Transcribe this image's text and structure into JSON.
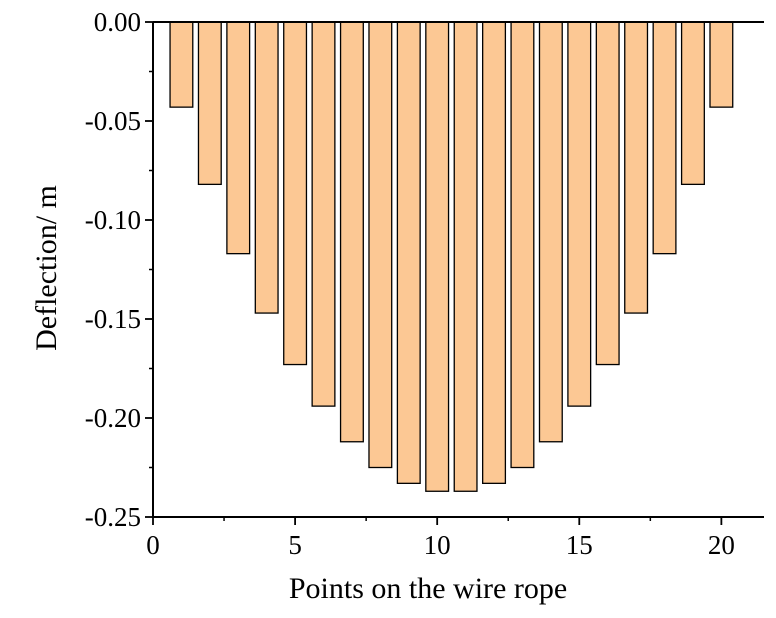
{
  "chart_data": {
    "type": "bar",
    "title": "",
    "xlabel": "Points on the wire rope",
    "ylabel": "Deflection/ m",
    "x": [
      1,
      2,
      3,
      4,
      5,
      6,
      7,
      8,
      9,
      10,
      11,
      12,
      13,
      14,
      15,
      16,
      17,
      18,
      19,
      20
    ],
    "values": [
      -0.043,
      -0.082,
      -0.117,
      -0.147,
      -0.173,
      -0.194,
      -0.212,
      -0.225,
      -0.233,
      -0.237,
      -0.237,
      -0.233,
      -0.225,
      -0.212,
      -0.194,
      -0.173,
      -0.147,
      -0.117,
      -0.082,
      -0.043
    ],
    "xlim": [
      0,
      21.5
    ],
    "ylim": [
      -0.25,
      0
    ],
    "x_ticks": [
      0,
      5,
      10,
      15,
      20
    ],
    "x_tick_labels": [
      "0",
      "5",
      "10",
      "15",
      "20"
    ],
    "y_ticks": [
      0,
      -0.05,
      -0.1,
      -0.15,
      -0.2,
      -0.25
    ],
    "y_tick_labels": [
      "0.00",
      "-0.05",
      "-0.10",
      "-0.15",
      "-0.20",
      "-0.25"
    ],
    "bar_fill": "#fcc894",
    "bar_edge": "#000000",
    "grid": false,
    "legend": "none"
  }
}
